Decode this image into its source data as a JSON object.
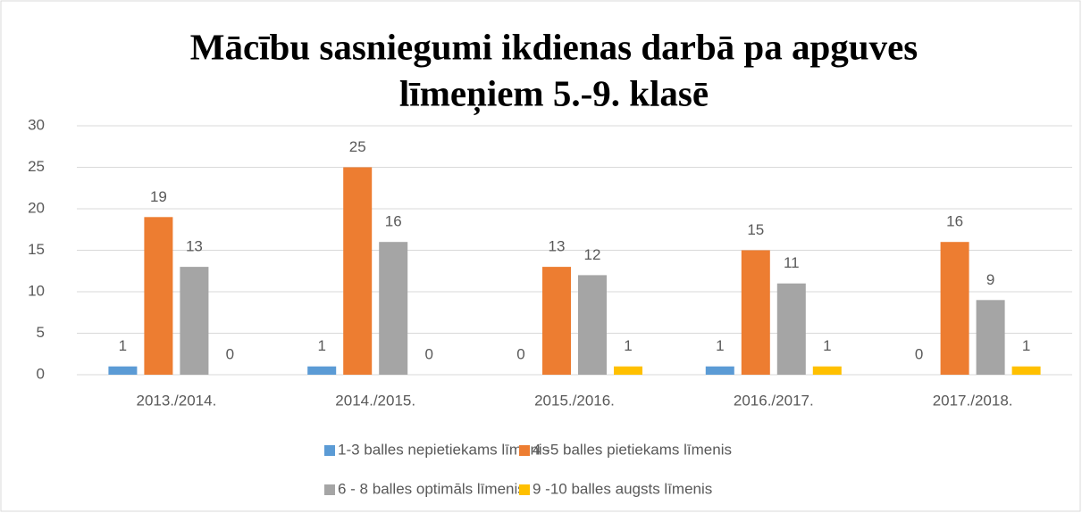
{
  "chart_data": {
    "type": "bar",
    "title": [
      "Mācību sasniegumi ikdienas darbā pa apguves",
      "līmeņiem  5.-9. klasē"
    ],
    "categories": [
      "2013./2014.",
      "2014./2015.",
      "2015./2016.",
      "2016./2017.",
      "2017./2018."
    ],
    "series": [
      {
        "name": "1-3 balles  nepietiekams līmenis",
        "color": "#5b9bd5",
        "values": [
          1,
          1,
          0,
          1,
          0
        ]
      },
      {
        "name": "4 -5 balles  pietiekams līmenis",
        "color": "#ed7d31",
        "values": [
          19,
          25,
          13,
          15,
          16
        ]
      },
      {
        "name": "6 - 8 balles  optimāls līmenis",
        "color": "#a5a5a5",
        "values": [
          13,
          16,
          12,
          11,
          9
        ]
      },
      {
        "name": "9 -10 balles  augsts līmenis",
        "color": "#ffc000",
        "values": [
          0,
          0,
          1,
          1,
          1
        ]
      }
    ],
    "ylim": [
      0,
      30
    ],
    "yticks": [
      0,
      5,
      10,
      15,
      20,
      25,
      30
    ],
    "grid": true,
    "legend": "bottom"
  }
}
